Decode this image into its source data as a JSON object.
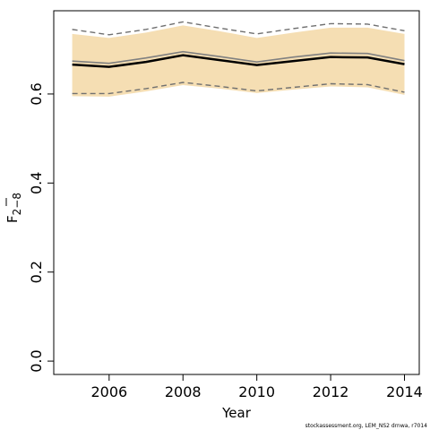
{
  "chart_data": {
    "type": "line",
    "title": "",
    "xlabel": "Year",
    "ylabel": "F2-8 (mean)",
    "ylabel_main": "F",
    "ylabel_sub": "2−8",
    "xlim": [
      2004.5,
      2014.4
    ],
    "ylim": [
      -0.03,
      0.787
    ],
    "x_ticks": [
      2006,
      2008,
      2010,
      2012,
      2014
    ],
    "x_tick_labels": [
      "2006",
      "2008",
      "2010",
      "2012",
      "2014"
    ],
    "y_ticks": [
      0.0,
      0.2,
      0.4,
      0.6
    ],
    "y_tick_labels": [
      "0.0",
      "0.2",
      "0.4",
      "0.6"
    ],
    "x": [
      2005,
      2006,
      2007,
      2008,
      2009,
      2010,
      2011,
      2012,
      2013,
      2014
    ],
    "band": {
      "lower": [
        0.595,
        0.594,
        0.606,
        0.62,
        0.612,
        0.602,
        0.61,
        0.617,
        0.615,
        0.598
      ],
      "upper": [
        0.735,
        0.726,
        0.738,
        0.754,
        0.741,
        0.726,
        0.738,
        0.749,
        0.749,
        0.735
      ],
      "color": "#F5DEB3"
    },
    "series": [
      {
        "role": "point_estimate",
        "values": [
          0.666,
          0.661,
          0.672,
          0.687,
          0.676,
          0.665,
          0.674,
          0.683,
          0.682,
          0.667
        ],
        "color": "#000000",
        "style": "solid"
      },
      {
        "role": "reference",
        "values": [
          0.674,
          0.669,
          0.681,
          0.695,
          0.684,
          0.672,
          0.683,
          0.692,
          0.691,
          0.675
        ],
        "color": "#808080",
        "style": "solid"
      },
      {
        "role": "upper_interval",
        "values": [
          0.745,
          0.733,
          0.745,
          0.762,
          0.748,
          0.735,
          0.747,
          0.758,
          0.757,
          0.742
        ],
        "color": "#707070",
        "style": "dashed"
      },
      {
        "role": "lower_interval",
        "values": [
          0.601,
          0.601,
          0.612,
          0.626,
          0.617,
          0.607,
          0.615,
          0.623,
          0.621,
          0.604
        ],
        "color": "#707070",
        "style": "dashed"
      }
    ],
    "grid": false,
    "legend": "none"
  },
  "footer": "stockassessment.org, LEM_NS2 drnwa, r7014"
}
